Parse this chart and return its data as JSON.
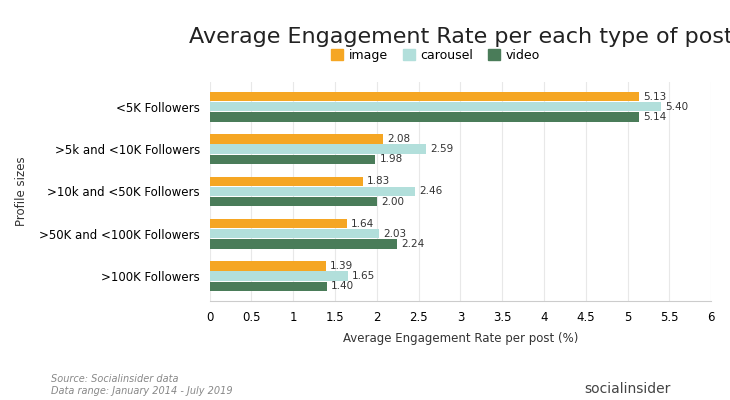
{
  "title": "Average Engagement Rate per each type of post",
  "xlabel": "Average Engagement Rate per post (%)",
  "ylabel": "Profile sizes",
  "categories": [
    "<5K Followers",
    ">5k and <10K Followers",
    ">10k and <50K Followers",
    ">50K and <100K Followers",
    ">100K Followers"
  ],
  "image_values": [
    5.13,
    2.08,
    1.83,
    1.64,
    1.39
  ],
  "carousel_values": [
    5.4,
    2.59,
    2.46,
    2.03,
    1.65
  ],
  "video_values": [
    5.14,
    1.98,
    2.0,
    2.24,
    1.4
  ],
  "image_color": "#F5A623",
  "carousel_color": "#B2DFDB",
  "video_color": "#4A7C59",
  "xlim": [
    0,
    6
  ],
  "xticks": [
    0,
    0.5,
    1,
    1.5,
    2,
    2.5,
    3,
    3.5,
    4,
    4.5,
    5,
    5.5,
    6
  ],
  "bar_height": 0.22,
  "bar_gap": 0.02,
  "legend_labels": [
    "image",
    "carousel",
    "video"
  ],
  "source_text": "Source: Socialinsider data\nData range: January 2014 - July 2019",
  "background_color": "#ffffff",
  "title_fontsize": 16,
  "label_fontsize": 8.5,
  "tick_fontsize": 8.5,
  "annotation_fontsize": 7.5,
  "legend_fontsize": 9
}
